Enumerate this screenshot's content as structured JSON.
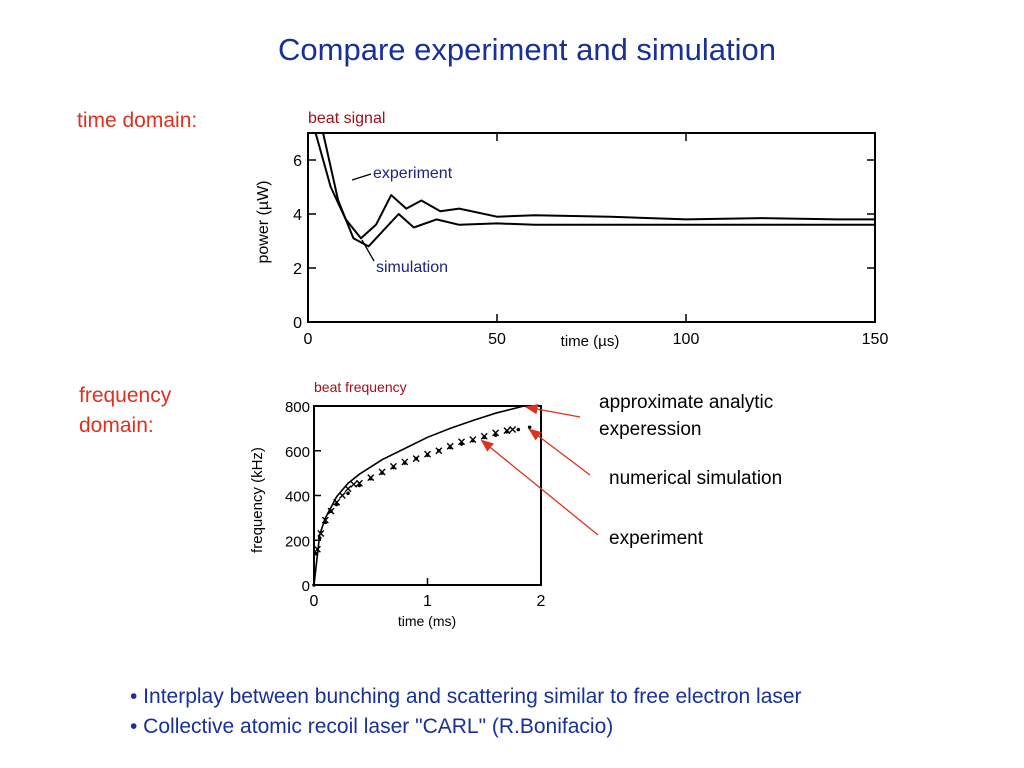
{
  "slide": {
    "title": "Compare experiment and simulation",
    "time_label": "time domain:",
    "freq_label_line1": "frequency",
    "freq_label_line2": "domain:",
    "annotations": {
      "analytic_line1": "approximate analytic",
      "analytic_line2": "experession",
      "numerical": "numerical simulation",
      "experiment": "experiment"
    },
    "bullets": [
      "• Interplay between bunching and scattering similar to free electron laser",
      "• Collective atomic recoil laser \"CARL\" (R.Bonifacio)"
    ],
    "colors": {
      "title": "#17309a",
      "side_labels": "#e0301e",
      "arrows": "#e0301e",
      "chart_title": "#a0101a",
      "inline_labels": "#1a237e"
    }
  },
  "chart_data": [
    {
      "type": "line",
      "title": "beat signal",
      "xlabel": "time (µs)",
      "ylabel": "power (µW)",
      "xlim": [
        0,
        150
      ],
      "ylim": [
        0,
        7
      ],
      "xticks": [
        "0",
        "50",
        "100",
        "150"
      ],
      "yticks": [
        "0",
        "2",
        "4",
        "6"
      ],
      "inline_labels": [
        "experiment",
        "simulation"
      ],
      "series": [
        {
          "name": "experiment",
          "x": [
            2,
            6,
            10,
            14,
            18,
            22,
            26,
            30,
            35,
            40,
            50,
            60,
            80,
            100,
            120,
            140,
            150
          ],
          "y": [
            7.0,
            5.0,
            3.8,
            3.1,
            3.6,
            4.7,
            4.2,
            4.5,
            4.1,
            4.2,
            3.9,
            3.95,
            3.9,
            3.8,
            3.85,
            3.8,
            3.8
          ]
        },
        {
          "name": "simulation",
          "x": [
            4,
            8,
            12,
            16,
            20,
            24,
            28,
            34,
            40,
            50,
            60,
            80,
            100,
            120,
            140,
            150
          ],
          "y": [
            7.0,
            4.5,
            3.1,
            2.8,
            3.4,
            4.0,
            3.5,
            3.8,
            3.6,
            3.65,
            3.6,
            3.6,
            3.6,
            3.6,
            3.6,
            3.6
          ]
        }
      ]
    },
    {
      "type": "line",
      "title": "beat frequency",
      "xlabel": "time (ms)",
      "ylabel": "frequency (kHz)",
      "xlim": [
        0,
        2
      ],
      "ylim": [
        0,
        800
      ],
      "xticks": [
        "0",
        "1",
        "2"
      ],
      "yticks": [
        "0",
        "200",
        "400",
        "600",
        "800"
      ],
      "series": [
        {
          "name": "approximate analytic experession",
          "x": [
            0,
            0.05,
            0.1,
            0.2,
            0.3,
            0.4,
            0.6,
            0.8,
            1.0,
            1.2,
            1.4,
            1.6,
            1.85
          ],
          "y": [
            0,
            225,
            300,
            395,
            455,
            495,
            560,
            610,
            660,
            700,
            735,
            768,
            800
          ]
        },
        {
          "name": "numerical simulation",
          "x": [
            0,
            0.02,
            0.05,
            0.1,
            0.15,
            0.2,
            0.3,
            0.4,
            0.5,
            0.6,
            0.7,
            0.8,
            0.9,
            1.0,
            1.1,
            1.2,
            1.3,
            1.4,
            1.5,
            1.6,
            1.7,
            1.8,
            1.9
          ],
          "y": [
            0,
            140,
            210,
            280,
            330,
            360,
            410,
            445,
            475,
            500,
            525,
            545,
            565,
            580,
            600,
            615,
            630,
            645,
            660,
            670,
            685,
            695,
            705
          ]
        },
        {
          "name": "experiment",
          "x": [
            0.03,
            0.06,
            0.1,
            0.15,
            0.2,
            0.25,
            0.3,
            0.35,
            0.4,
            0.5,
            0.6,
            0.7,
            0.8,
            0.9,
            1.0,
            1.1,
            1.2,
            1.3,
            1.4,
            1.5,
            1.6,
            1.7,
            1.75
          ],
          "y": [
            160,
            230,
            290,
            330,
            370,
            400,
            430,
            450,
            455,
            480,
            505,
            530,
            550,
            565,
            585,
            600,
            620,
            640,
            650,
            665,
            680,
            690,
            695
          ]
        }
      ]
    }
  ]
}
